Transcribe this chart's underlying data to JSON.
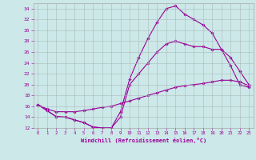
{
  "xlabel": "Windchill (Refroidissement éolien,°C)",
  "bg_color": "#cce8e8",
  "line_color": "#990099",
  "grid_color": "#aabbbb",
  "xlim": [
    -0.5,
    23.5
  ],
  "ylim": [
    12,
    35
  ],
  "yticks": [
    12,
    14,
    16,
    18,
    20,
    22,
    24,
    26,
    28,
    30,
    32,
    34
  ],
  "xticks": [
    0,
    1,
    2,
    3,
    4,
    5,
    6,
    7,
    8,
    9,
    10,
    11,
    12,
    13,
    14,
    15,
    16,
    17,
    18,
    19,
    20,
    21,
    22,
    23
  ],
  "line1_x": [
    0,
    1,
    2,
    3,
    4,
    5,
    6,
    7,
    8,
    9,
    10,
    11,
    12,
    13,
    14,
    15,
    16,
    17,
    18,
    19,
    20,
    21,
    22,
    23
  ],
  "line1_y": [
    16.3,
    15.2,
    14.1,
    14.0,
    13.5,
    13.0,
    12.2,
    12.0,
    12.0,
    15.0,
    21.0,
    25.0,
    28.5,
    31.5,
    34.0,
    34.5,
    33.0,
    32.0,
    31.0,
    29.5,
    26.5,
    25.0,
    22.5,
    20.0
  ],
  "line2_x": [
    0,
    1,
    2,
    3,
    4,
    5,
    6,
    7,
    8,
    9,
    10,
    11,
    12,
    13,
    14,
    15,
    16,
    17,
    18,
    19,
    20,
    21,
    22,
    23
  ],
  "line2_y": [
    16.3,
    15.2,
    14.1,
    14.0,
    13.5,
    13.0,
    12.2,
    12.0,
    12.0,
    14.0,
    20.0,
    22.0,
    24.0,
    26.0,
    27.5,
    28.0,
    27.5,
    27.0,
    27.0,
    26.5,
    26.5,
    23.5,
    20.0,
    19.5
  ],
  "line3_x": [
    0,
    1,
    2,
    3,
    4,
    5,
    6,
    7,
    8,
    9,
    10,
    11,
    12,
    13,
    14,
    15,
    16,
    17,
    18,
    19,
    20,
    21,
    22,
    23
  ],
  "line3_y": [
    16.3,
    15.5,
    15.0,
    15.0,
    15.0,
    15.2,
    15.5,
    15.8,
    16.0,
    16.5,
    17.0,
    17.5,
    18.0,
    18.5,
    19.0,
    19.5,
    19.8,
    20.0,
    20.2,
    20.5,
    20.8,
    20.8,
    20.5,
    19.8
  ]
}
